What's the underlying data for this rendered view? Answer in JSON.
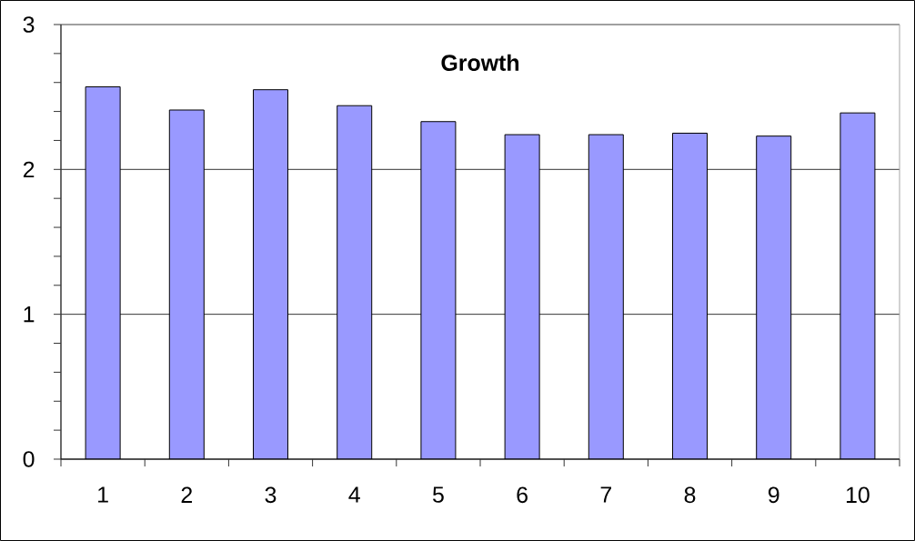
{
  "chart_data": {
    "type": "bar",
    "title": "Growth",
    "categories": [
      "1",
      "2",
      "3",
      "4",
      "5",
      "6",
      "7",
      "8",
      "9",
      "10"
    ],
    "values": [
      2.57,
      2.41,
      2.55,
      2.44,
      2.33,
      2.24,
      2.24,
      2.25,
      2.23,
      2.39
    ],
    "color": "#9999ff",
    "ylim": [
      0,
      3
    ],
    "yticks": [
      0,
      {
        "value": 0.2,
        "label": null
      },
      {
        "value": 0.4,
        "label": null
      },
      {
        "value": 0.6,
        "label": null
      },
      {
        "value": 0.8,
        "label": null
      },
      1,
      {
        "value": 1.2,
        "label": null
      },
      {
        "value": 1.4,
        "label": null
      },
      {
        "value": 1.6,
        "label": null
      },
      {
        "value": 1.8,
        "label": null
      },
      2,
      {
        "value": 2.2,
        "label": null
      },
      {
        "value": 2.4,
        "label": null
      },
      {
        "value": 2.6,
        "label": null
      },
      {
        "value": 2.8,
        "label": null
      },
      3
    ],
    "grid": "y"
  }
}
